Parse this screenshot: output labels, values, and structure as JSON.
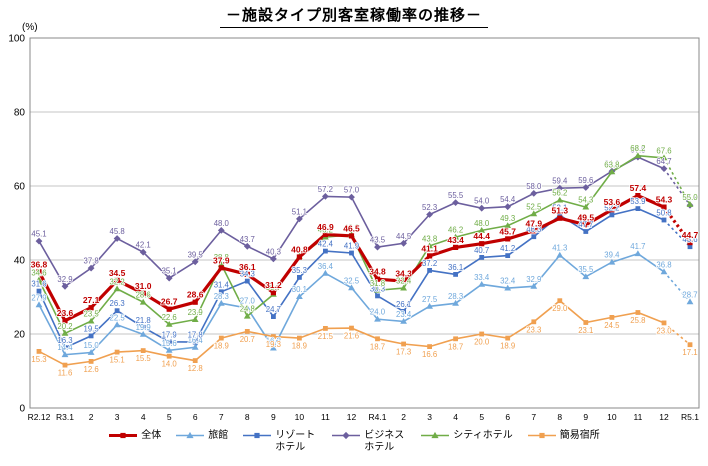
{
  "chart_data": {
    "type": "line",
    "title": "－施設タイプ別客室稼働率の推移－",
    "ylabel": "(%)",
    "ylim": [
      0,
      100
    ],
    "ytick_interval": 20,
    "grid": "horizontal",
    "legend_position": "bottom",
    "last_segment_dashed": true,
    "categories": [
      "R2.12",
      "R3.1",
      "2",
      "3",
      "4",
      "5",
      "6",
      "7",
      "8",
      "9",
      "10",
      "11",
      "12",
      "R4.1",
      "2",
      "3",
      "4",
      "5",
      "6",
      "7",
      "8",
      "9",
      "10",
      "11",
      "12",
      "R5.1"
    ],
    "series": [
      {
        "name": "全体",
        "color": "#c00000",
        "marker": "square",
        "emphasis": true,
        "values": [
          36.8,
          23.6,
          27.1,
          34.5,
          31.0,
          26.7,
          28.6,
          37.9,
          36.1,
          31.2,
          40.8,
          46.9,
          46.5,
          34.8,
          34.3,
          41.1,
          43.4,
          44.4,
          45.7,
          47.9,
          51.3,
          49.5,
          53.6,
          57.4,
          54.3,
          44.7
        ]
      },
      {
        "name": "旅館",
        "color": "#6fa8dc",
        "marker": "triangle",
        "values": [
          27.9,
          14.4,
          15.0,
          22.5,
          19.9,
          15.6,
          16.4,
          28.3,
          27.0,
          16.2,
          30.1,
          36.4,
          32.5,
          24.0,
          23.4,
          27.5,
          28.3,
          33.4,
          32.4,
          32.9,
          41.3,
          35.5,
          39.4,
          41.7,
          36.8,
          28.7
        ]
      },
      {
        "name": "リゾートホテル",
        "color": "#4472c4",
        "marker": "square",
        "values": [
          31.6,
          16.3,
          19.5,
          26.3,
          21.8,
          17.9,
          17.8,
          31.4,
          34.3,
          24.7,
          35.3,
          42.4,
          41.9,
          30.3,
          26.1,
          37.2,
          36.1,
          40.7,
          41.2,
          46.3,
          52.1,
          47.7,
          52.2,
          53.9,
          50.8,
          43.6
        ]
      },
      {
        "name": "ビジネスホテル",
        "color": "#6c5f9e",
        "marker": "diamond",
        "values": [
          45.1,
          32.9,
          37.8,
          45.8,
          42.1,
          35.1,
          39.5,
          48.0,
          43.7,
          40.3,
          51.1,
          57.2,
          57.0,
          43.5,
          44.5,
          52.3,
          55.5,
          54.0,
          54.4,
          58.0,
          59.4,
          59.6,
          64.0,
          67.8,
          64.7,
          54.8
        ]
      },
      {
        "name": "シティホテル",
        "color": "#70ad47",
        "marker": "triangle",
        "values": [
          34.6,
          20.2,
          23.5,
          32.2,
          28.6,
          22.6,
          23.9,
          38.8,
          24.8,
          30.7,
          41.0,
          46.2,
          46.8,
          31.8,
          32.4,
          43.8,
          46.2,
          48.0,
          49.3,
          52.5,
          56.2,
          54.3,
          63.8,
          68.2,
          67.6,
          55.0
        ]
      },
      {
        "name": "簡易宿所",
        "color": "#f0a050",
        "marker": "square",
        "label_below": true,
        "values": [
          15.3,
          11.6,
          12.6,
          15.1,
          15.5,
          14.0,
          12.8,
          18.9,
          20.7,
          19.3,
          18.9,
          21.5,
          21.6,
          18.7,
          17.3,
          16.6,
          18.7,
          20.0,
          18.9,
          23.3,
          29.0,
          23.1,
          24.5,
          25.8,
          23.0,
          17.1
        ]
      }
    ]
  }
}
